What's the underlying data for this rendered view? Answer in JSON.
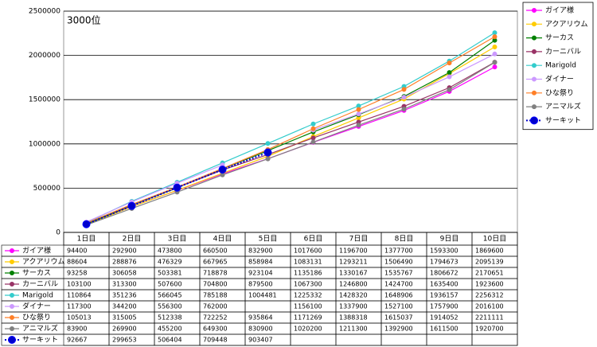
{
  "chart_data": {
    "type": "line",
    "annotation": "3000位",
    "categories": [
      "1日目",
      "2日目",
      "3日目",
      "4日目",
      "5日目",
      "6日目",
      "7日目",
      "8日目",
      "9日目",
      "10日目"
    ],
    "ylim": [
      0,
      2500000
    ],
    "yticks": [
      0,
      500000,
      1000000,
      1500000,
      2000000,
      2500000
    ],
    "grid": true,
    "legend": "right",
    "series": [
      {
        "name": "ガイア様",
        "color": "#ff00ff",
        "values": [
          94400,
          292900,
          473800,
          660500,
          832900,
          1017600,
          1196700,
          1377700,
          1593300,
          1869600
        ]
      },
      {
        "name": "アクアリウム",
        "color": "#ffcc00",
        "values": [
          88604,
          288876,
          476329,
          667965,
          858984,
          1083131,
          1293211,
          1506490,
          1794673,
          2095139
        ]
      },
      {
        "name": "サーカス",
        "color": "#008000",
        "values": [
          93258,
          306058,
          503381,
          718878,
          923104,
          1135186,
          1330167,
          1535767,
          1806672,
          2170651
        ]
      },
      {
        "name": "カーニバル",
        "color": "#993366",
        "values": [
          103100,
          313300,
          507600,
          704800,
          879500,
          1067300,
          1246800,
          1424700,
          1635400,
          1923600
        ]
      },
      {
        "name": "Marigold",
        "color": "#33cccc",
        "values": [
          110864,
          351236,
          566045,
          785188,
          1004481,
          1225332,
          1428320,
          1648906,
          1936157,
          2256312
        ]
      },
      {
        "name": "ダイナー",
        "color": "#cc99ff",
        "values": [
          117300,
          344200,
          556300,
          762000,
          null,
          1156100,
          1337900,
          1527100,
          1757900,
          2016100
        ]
      },
      {
        "name": "ひな祭り",
        "color": "#ff7f27",
        "values": [
          105013,
          315005,
          512338,
          722252,
          935864,
          1171269,
          1388318,
          1615037,
          1914052,
          2211111
        ]
      },
      {
        "name": "アニマルズ",
        "color": "#808080",
        "values": [
          83900,
          269900,
          455200,
          649300,
          830900,
          1020200,
          1211300,
          1392900,
          1611500,
          1920700
        ]
      },
      {
        "name": "サーキット",
        "color": "#0000cc",
        "dashed": true,
        "values": [
          92667,
          299653,
          506404,
          709448,
          903407,
          null,
          null,
          null,
          null,
          null
        ]
      }
    ]
  }
}
